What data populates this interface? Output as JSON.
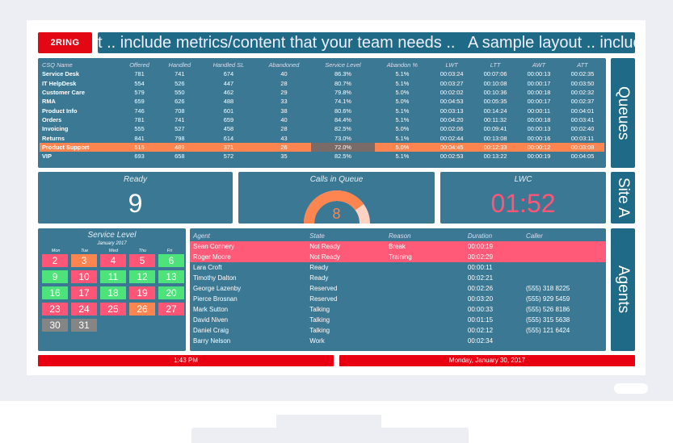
{
  "brand": {
    "logo": "2RING",
    "color": "#e30613"
  },
  "marquee": "t .. include metrics/content that your team needs ..   A sample layout .. include metrics/c",
  "queues": {
    "label": "Queues",
    "headers": [
      "CSQ Name",
      "Offered",
      "Handled",
      "Handled SL",
      "Abandoned",
      "Service Level",
      "Abandon %",
      "LWT",
      "LTT",
      "AWT",
      "ATT"
    ],
    "rows": [
      [
        "Service Desk",
        "781",
        "741",
        "674",
        "40",
        "86.3%",
        "5.1%",
        "00:03:24",
        "00:07:06",
        "00:00:13",
        "00:02:35"
      ],
      [
        "IT HelpDesk",
        "554",
        "526",
        "447",
        "28",
        "80.7%",
        "5.1%",
        "00:03:27",
        "00:10:08",
        "00:00:17",
        "00:03:50"
      ],
      [
        "Customer Care",
        "579",
        "550",
        "462",
        "29",
        "79.8%",
        "5.0%",
        "00:02:02",
        "00:10:36",
        "00:00:18",
        "00:02:32"
      ],
      [
        "RMA",
        "659",
        "626",
        "488",
        "33",
        "74.1%",
        "5.0%",
        "00:04:53",
        "00:05:35",
        "00:00:17",
        "00:02:37"
      ],
      [
        "Product Info",
        "746",
        "708",
        "601",
        "38",
        "80.6%",
        "5.1%",
        "00:03:13",
        "00:14:24",
        "00:00:11",
        "00:04:01"
      ],
      [
        "Orders",
        "781",
        "741",
        "659",
        "40",
        "84.4%",
        "5.1%",
        "00:04:20",
        "00:11:32",
        "00:00:18",
        "00:03:41"
      ],
      [
        "Invoicing",
        "555",
        "527",
        "458",
        "28",
        "82.5%",
        "5.0%",
        "00:02:06",
        "00:09:41",
        "00:00:13",
        "00:02:40"
      ],
      [
        "Returns",
        "841",
        "798",
        "614",
        "43",
        "73.0%",
        "5.1%",
        "00:02:44",
        "00:13:08",
        "00:00:16",
        "00:03:11"
      ],
      [
        "Product Support",
        "515",
        "489",
        "371",
        "26",
        "72.0%",
        "5.0%",
        "00:04:45",
        "00:12:33",
        "00:00:12",
        "00:03:08"
      ],
      [
        "VIP",
        "693",
        "658",
        "572",
        "35",
        "82.5%",
        "5.1%",
        "00:02:53",
        "00:13:22",
        "00:00:19",
        "00:04:05"
      ]
    ],
    "highlight_row": 8
  },
  "site": {
    "label": "Site A",
    "ready": {
      "title": "Ready",
      "value": "9"
    },
    "calls": {
      "title": "Calls in Queue",
      "value": "8",
      "gauge_fraction": 0.8
    },
    "lwc": {
      "title": "LWC",
      "value": "01:52"
    }
  },
  "calendar": {
    "title": "Service Level",
    "month": "January 2017",
    "dows": [
      "Mon",
      "Tue",
      "Wed",
      "Thu",
      "Fri"
    ],
    "days": [
      [
        "2",
        "red"
      ],
      [
        "3",
        "orange"
      ],
      [
        "4",
        "red"
      ],
      [
        "5",
        "red"
      ],
      [
        "6",
        "green"
      ],
      [
        "9",
        "green"
      ],
      [
        "10",
        "red"
      ],
      [
        "11",
        "green"
      ],
      [
        "12",
        "green"
      ],
      [
        "13",
        "green"
      ],
      [
        "16",
        "green"
      ],
      [
        "17",
        "red"
      ],
      [
        "18",
        "green"
      ],
      [
        "19",
        "red"
      ],
      [
        "20",
        "green"
      ],
      [
        "23",
        "red"
      ],
      [
        "24",
        "red"
      ],
      [
        "25",
        "red"
      ],
      [
        "26",
        "orange"
      ],
      [
        "27",
        "red"
      ],
      [
        "30",
        "gray"
      ],
      [
        "31",
        "gray"
      ]
    ],
    "colors": {
      "red": "#ff5577",
      "orange": "#fe8550",
      "green": "#4de27a",
      "gray": "#858585"
    }
  },
  "agents": {
    "label": "Agents",
    "headers": [
      "Agent",
      "State",
      "Reason",
      "Duration",
      "Caller"
    ],
    "rows": [
      [
        "Sean Connery",
        "Not Ready",
        "Break",
        "00:00:19",
        ""
      ],
      [
        "Roger Moore",
        "Not Ready",
        "Training",
        "00:02:29",
        ""
      ],
      [
        "Lara Croft",
        "Ready",
        "",
        "00:00:11",
        ""
      ],
      [
        "Timothy Dalton",
        "Ready",
        "",
        "00:02:21",
        ""
      ],
      [
        "George Lazenby",
        "Reserved",
        "",
        "00:02:26",
        "(555) 318 8225"
      ],
      [
        "Pierce Brosnan",
        "Reserved",
        "",
        "00:03:20",
        "(555) 929 5459"
      ],
      [
        "Mark Sutton",
        "Talking",
        "",
        "00:00:33",
        "(555) 526 8186"
      ],
      [
        "David Niven",
        "Talking",
        "",
        "00:01:15",
        "(555) 315 5638"
      ],
      [
        "Daniel Craig",
        "Talking",
        "",
        "00:02:12",
        "(555) 121 6424"
      ],
      [
        "Barry Nelson",
        "Work",
        "",
        "00:02:34",
        ""
      ]
    ]
  },
  "footer": {
    "time": "1:43 PM",
    "date": "Monday, January 30, 2017"
  }
}
